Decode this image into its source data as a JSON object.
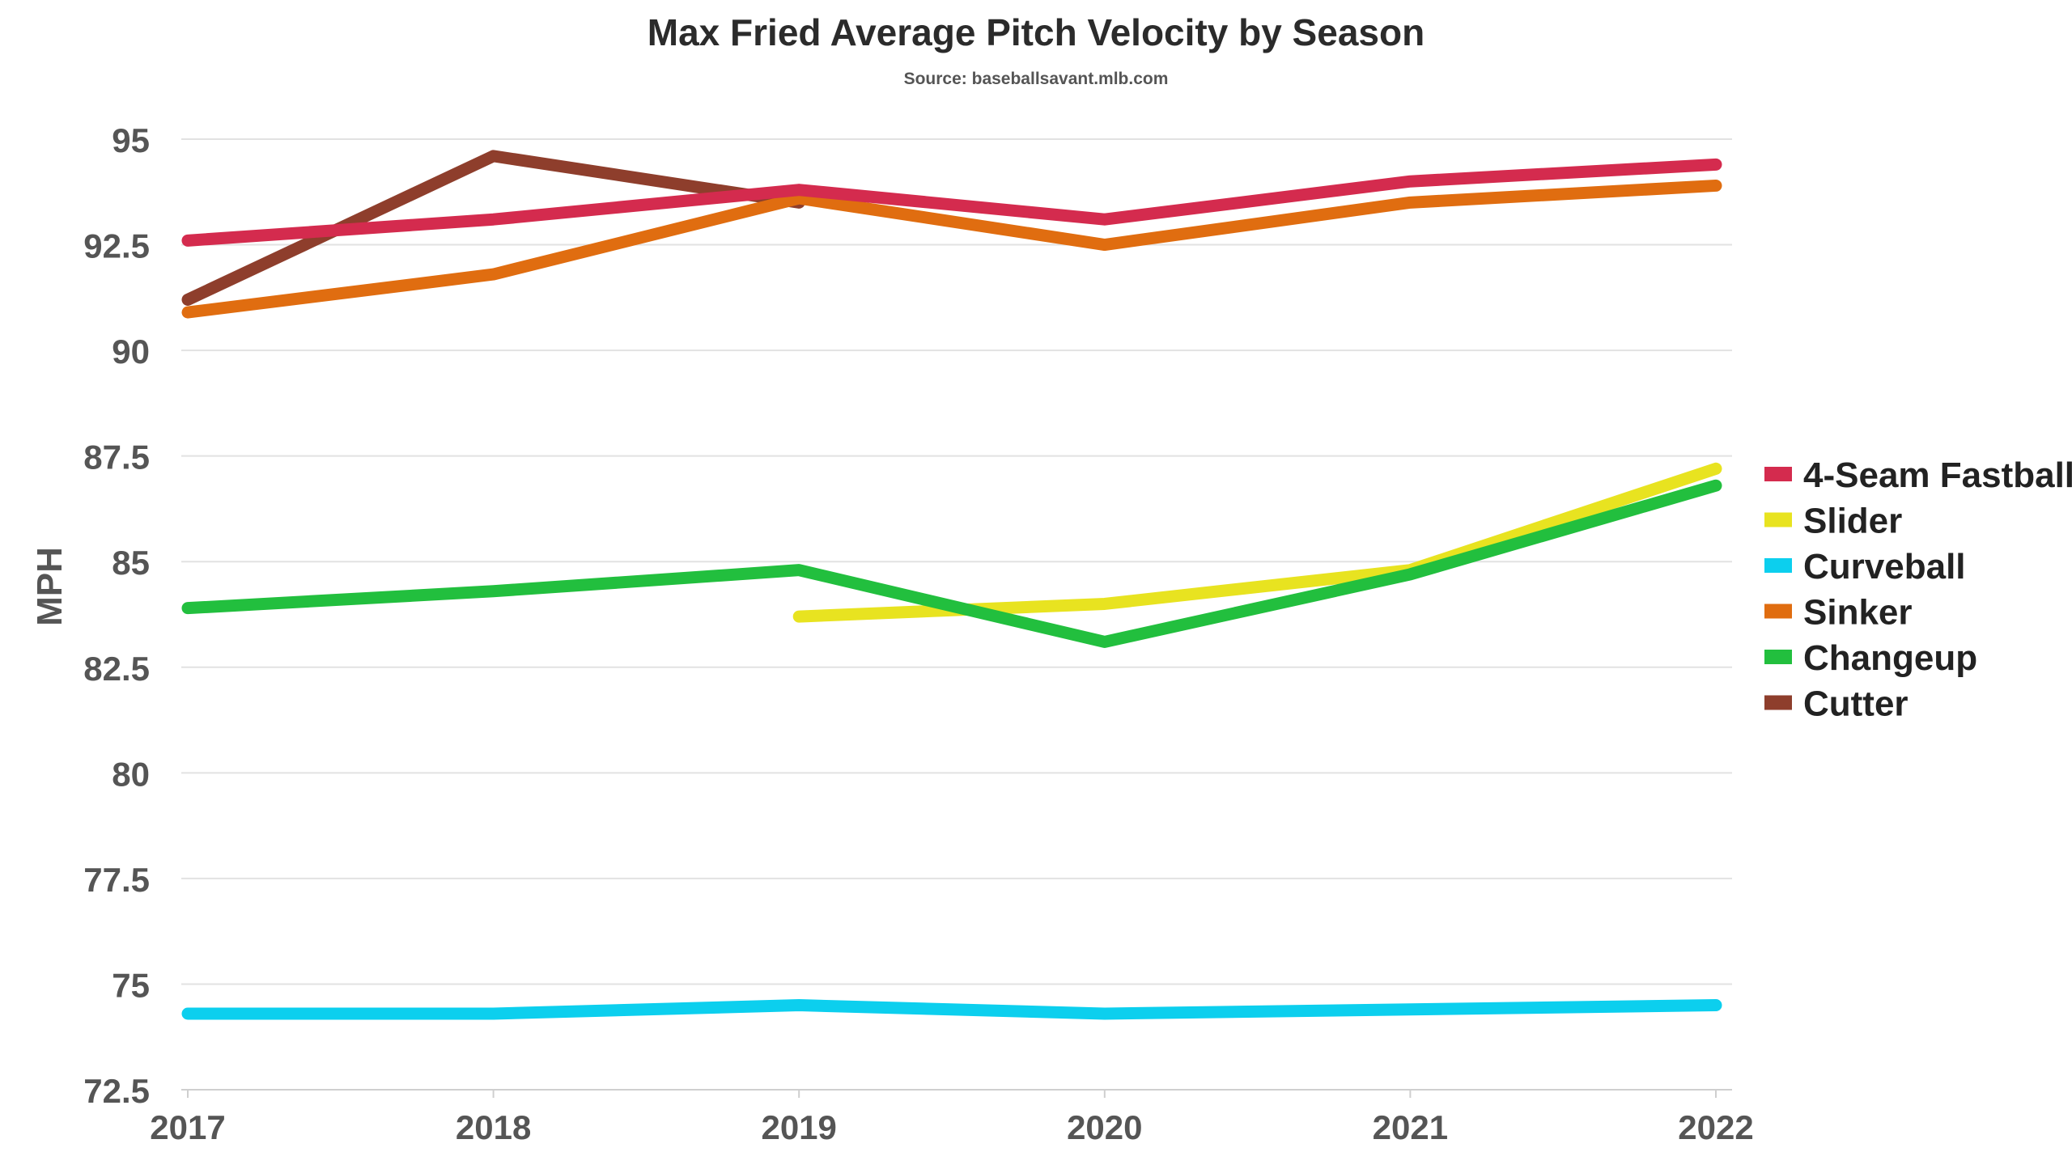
{
  "chart_data": {
    "type": "line",
    "title": "Max Fried Average Pitch Velocity by Season",
    "subtitle": "Source: baseballsavant.mlb.com",
    "ylabel": "MPH",
    "xlabel": "",
    "x": [
      "2017",
      "2018",
      "2019",
      "2020",
      "2021",
      "2022"
    ],
    "ylim": [
      72.5,
      95
    ],
    "yticks": [
      95,
      92.5,
      90,
      87.5,
      85,
      82.5,
      80,
      77.5,
      75,
      72.5
    ],
    "ytick_labels": [
      "95",
      "92.5",
      "90",
      "87.5",
      "85",
      "82.5",
      "80",
      "77.5",
      "75",
      "72.5"
    ],
    "grid": true,
    "legend_position": "right",
    "series": [
      {
        "name": "4-Seam Fastball",
        "color": "#d42b4e",
        "values": [
          92.6,
          93.1,
          93.8,
          93.1,
          94.0,
          94.4
        ]
      },
      {
        "name": "Slider",
        "color": "#e8e320",
        "values": [
          null,
          null,
          83.7,
          84.0,
          84.8,
          87.2
        ]
      },
      {
        "name": "Curveball",
        "color": "#0ccfee",
        "values": [
          74.3,
          74.3,
          74.5,
          74.3,
          74.4,
          74.5
        ]
      },
      {
        "name": "Sinker",
        "color": "#e06d10",
        "values": [
          90.9,
          91.8,
          93.6,
          92.5,
          93.5,
          93.9
        ]
      },
      {
        "name": "Changeup",
        "color": "#22bf3e",
        "values": [
          83.9,
          84.3,
          84.8,
          83.1,
          84.7,
          86.8
        ]
      },
      {
        "name": "Cutter",
        "color": "#8e3e2c",
        "values": [
          91.2,
          94.6,
          93.5,
          null,
          null,
          null
        ]
      }
    ]
  }
}
